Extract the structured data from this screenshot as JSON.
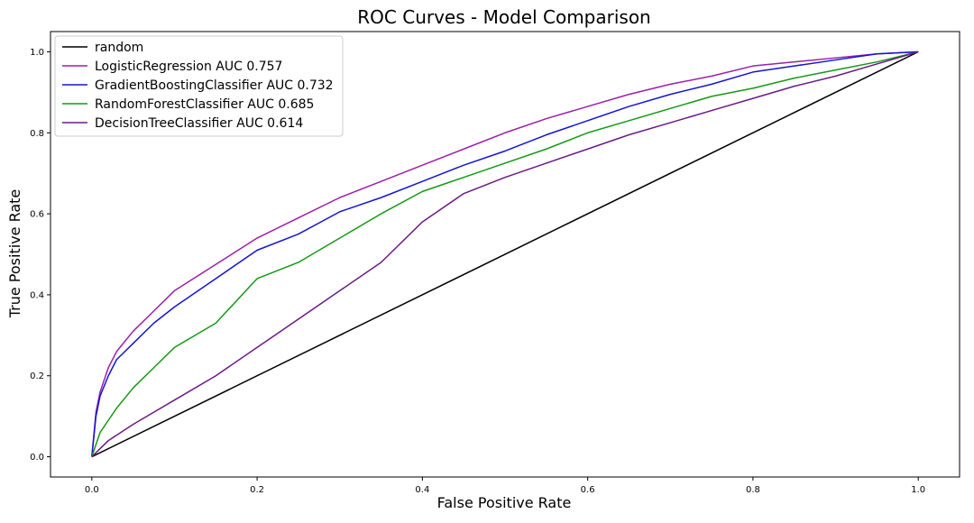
{
  "chart_data": {
    "type": "line",
    "title": "ROC Curves - Model Comparison",
    "xlabel": "False Positive Rate",
    "ylabel": "True Positive Rate",
    "xlim": [
      -0.05,
      1.05
    ],
    "ylim": [
      -0.05,
      1.05
    ],
    "x_ticks": [
      "0.0",
      "0.2",
      "0.4",
      "0.6",
      "0.8",
      "1.0"
    ],
    "y_ticks": [
      "0.0",
      "0.2",
      "0.4",
      "0.6",
      "0.8",
      "1.0"
    ],
    "grid": false,
    "legend_position": "top-left",
    "series": [
      {
        "name": "random",
        "color": "#000000",
        "x": [
          0.0,
          1.0
        ],
        "y": [
          0.0,
          1.0
        ]
      },
      {
        "name": "LogisticRegression AUC 0.757",
        "color": "#9b1fa8",
        "x": [
          0.0,
          0.005,
          0.01,
          0.02,
          0.03,
          0.05,
          0.075,
          0.1,
          0.15,
          0.2,
          0.25,
          0.3,
          0.35,
          0.4,
          0.45,
          0.5,
          0.55,
          0.6,
          0.65,
          0.7,
          0.75,
          0.8,
          0.85,
          0.9,
          0.95,
          1.0
        ],
        "y": [
          0.0,
          0.11,
          0.16,
          0.22,
          0.26,
          0.31,
          0.36,
          0.41,
          0.475,
          0.54,
          0.59,
          0.64,
          0.68,
          0.72,
          0.76,
          0.8,
          0.835,
          0.865,
          0.895,
          0.92,
          0.94,
          0.965,
          0.975,
          0.985,
          0.995,
          1.0
        ]
      },
      {
        "name": "GradientBoostingClassifier AUC 0.732",
        "color": "#1414d2",
        "x": [
          0.0,
          0.005,
          0.01,
          0.02,
          0.03,
          0.05,
          0.075,
          0.1,
          0.15,
          0.2,
          0.25,
          0.3,
          0.35,
          0.4,
          0.45,
          0.5,
          0.55,
          0.6,
          0.65,
          0.7,
          0.75,
          0.8,
          0.85,
          0.9,
          0.95,
          1.0
        ],
        "y": [
          0.0,
          0.1,
          0.15,
          0.2,
          0.24,
          0.28,
          0.33,
          0.37,
          0.44,
          0.51,
          0.55,
          0.605,
          0.64,
          0.68,
          0.72,
          0.755,
          0.795,
          0.83,
          0.865,
          0.895,
          0.92,
          0.95,
          0.965,
          0.98,
          0.995,
          1.0
        ]
      },
      {
        "name": "RandomForestClassifier AUC 0.685",
        "color": "#159915",
        "x": [
          0.0,
          0.01,
          0.02,
          0.03,
          0.05,
          0.075,
          0.1,
          0.15,
          0.2,
          0.25,
          0.3,
          0.35,
          0.4,
          0.45,
          0.5,
          0.55,
          0.6,
          0.65,
          0.7,
          0.75,
          0.8,
          0.85,
          0.9,
          0.95,
          1.0
        ],
        "y": [
          0.0,
          0.06,
          0.09,
          0.12,
          0.17,
          0.22,
          0.27,
          0.33,
          0.44,
          0.48,
          0.54,
          0.6,
          0.655,
          0.69,
          0.725,
          0.76,
          0.8,
          0.83,
          0.86,
          0.89,
          0.91,
          0.935,
          0.955,
          0.975,
          1.0
        ]
      },
      {
        "name": "DecisionTreeClassifier AUC 0.614",
        "color": "#6a1a85",
        "x": [
          0.0,
          0.01,
          0.02,
          0.05,
          0.075,
          0.1,
          0.15,
          0.2,
          0.25,
          0.3,
          0.35,
          0.4,
          0.45,
          0.5,
          0.55,
          0.6,
          0.65,
          0.7,
          0.75,
          0.8,
          0.85,
          0.9,
          0.95,
          1.0
        ],
        "y": [
          0.0,
          0.02,
          0.04,
          0.08,
          0.11,
          0.14,
          0.2,
          0.27,
          0.34,
          0.41,
          0.48,
          0.58,
          0.65,
          0.69,
          0.725,
          0.76,
          0.795,
          0.825,
          0.855,
          0.885,
          0.915,
          0.94,
          0.97,
          1.0
        ]
      }
    ]
  }
}
